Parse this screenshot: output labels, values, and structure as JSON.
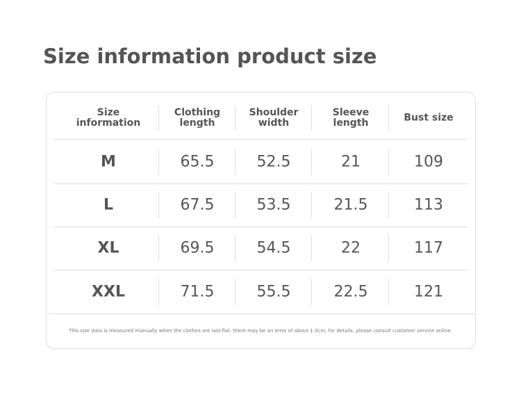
{
  "header": {
    "title": "Size information product size"
  },
  "table": {
    "columns": [
      "Size information",
      "Clothing length",
      "Shoulder width",
      "Sleeve length",
      "Bust size"
    ],
    "rows": [
      [
        "M",
        "65.5",
        "52.5",
        "21",
        "109"
      ],
      [
        "L",
        "67.5",
        "53.5",
        "21.5",
        "113"
      ],
      [
        "XL",
        "69.5",
        "54.5",
        "22",
        "117"
      ],
      [
        "XXL",
        "71.5",
        "55.5",
        "22.5",
        "121"
      ]
    ]
  },
  "footnote": "This size data is measured manually when the clothes are laid flat. there may be an error of about 1-3cm. for details, please consult customer service online."
}
